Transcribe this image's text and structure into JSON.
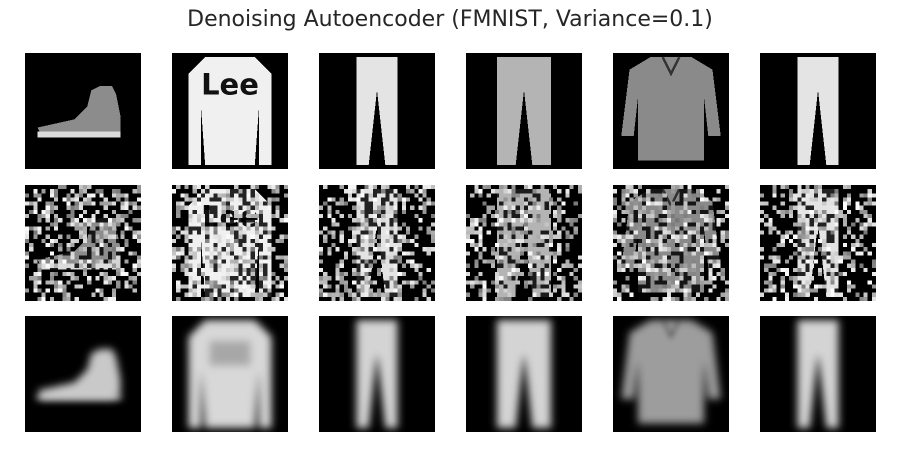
{
  "figure": {
    "title": "Denoising Autoencoder (FMNIST, Variance=0.1)"
  },
  "panels": {
    "rows": [
      {
        "role": "original",
        "items": [
          "ankle-boot",
          "pullover",
          "trouser",
          "trouser",
          "shirt",
          "trouser"
        ]
      },
      {
        "role": "noisy",
        "items": [
          "ankle-boot",
          "pullover",
          "trouser",
          "trouser",
          "shirt",
          "trouser"
        ]
      },
      {
        "role": "reconstructed",
        "items": [
          "ankle-boot",
          "pullover",
          "trouser",
          "trouser",
          "shirt",
          "trouser"
        ]
      }
    ],
    "colormap": "gray",
    "logo_text": "Lee"
  },
  "colors": {
    "background": "#ffffff",
    "image_background": "#000000",
    "title": "#262626"
  }
}
